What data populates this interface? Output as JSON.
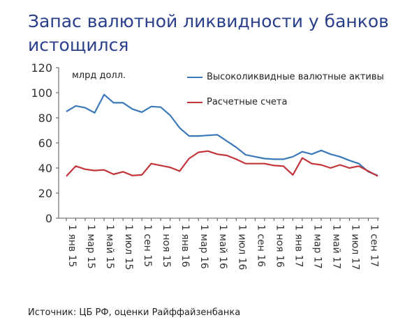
{
  "chart_data": {
    "type": "line",
    "title": "Запас валютной ликвидности у банков истощился",
    "units_label": "млрд долл.",
    "source": "Источник: ЦБ РФ, оценки Райффайзенбанка",
    "ylim": [
      0,
      120
    ],
    "yticks": [
      0,
      20,
      40,
      60,
      80,
      100,
      120
    ],
    "grid": false,
    "legend_position": "top-right",
    "x_tick_labels": [
      "1 янв 15",
      "1 мар 15",
      "1 май 15",
      "1 июл 15",
      "1 сен 15",
      "1 ноя 15",
      "1 янв 16",
      "1 мар 16",
      "1 май 16",
      "1 июл 16",
      "1 сен 16",
      "1 ноя 16",
      "1 янв 17",
      "1 мар 17",
      "1 май 17",
      "1 июл 17",
      "1 сен 17"
    ],
    "x": [
      "2015-01",
      "2015-02",
      "2015-03",
      "2015-04",
      "2015-05",
      "2015-06",
      "2015-07",
      "2015-08",
      "2015-09",
      "2015-10",
      "2015-11",
      "2015-12",
      "2016-01",
      "2016-02",
      "2016-03",
      "2016-04",
      "2016-05",
      "2016-06",
      "2016-07",
      "2016-08",
      "2016-09",
      "2016-10",
      "2016-11",
      "2016-12",
      "2017-01",
      "2017-02",
      "2017-03",
      "2017-04",
      "2017-05",
      "2017-06",
      "2017-07",
      "2017-08",
      "2017-09",
      "2017-10"
    ],
    "series": [
      {
        "name": "Высоколиквидные валютные активы",
        "color": "#3b78b9",
        "values": [
          85,
          89.5,
          88,
          84,
          98.5,
          92,
          92,
          87,
          84.5,
          89,
          88.5,
          82,
          72,
          65.5,
          65.5,
          66,
          66.5,
          61.5,
          56.5,
          50.5,
          49,
          47.5,
          47,
          47,
          49,
          53,
          51,
          54,
          51,
          49,
          46,
          43.5,
          37,
          34
        ]
      },
      {
        "name": "Расчетные счета",
        "color": "#c2333a",
        "values": [
          33.5,
          41.5,
          39,
          38,
          38.5,
          35,
          37,
          34,
          34.5,
          43.5,
          42,
          40.5,
          37.5,
          47.5,
          52.5,
          53.5,
          51,
          50,
          47,
          43.5,
          43.5,
          43.5,
          42,
          41.5,
          34.5,
          48,
          43.5,
          42.5,
          40,
          42.5,
          40,
          41.5,
          37.5,
          33.5
        ]
      }
    ]
  }
}
